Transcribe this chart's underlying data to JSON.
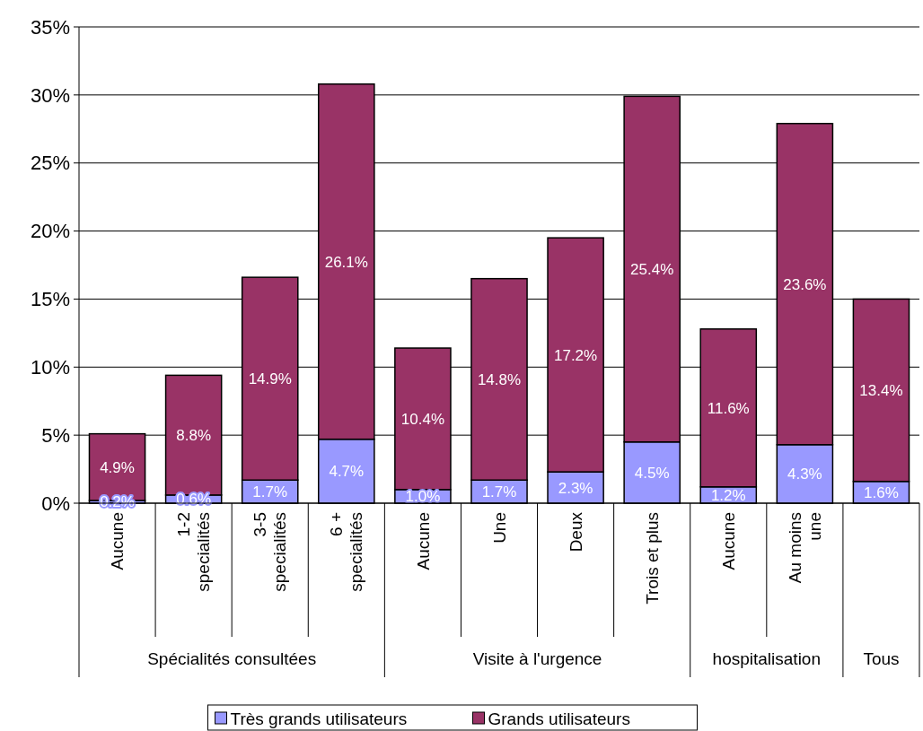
{
  "chart_data": {
    "type": "bar",
    "stacked": true,
    "categories": [
      "Aucune",
      "1-2\nspecialités",
      "3-5\nspecialités",
      "6 +\nspecialités",
      "Aucune",
      "Une",
      "Deux",
      "Trois et plus",
      "Aucune",
      "Au moins\nune",
      null
    ],
    "series": [
      {
        "name": "Très grands utilisateurs",
        "color": "#9999ff",
        "values": [
          0.2,
          0.6,
          1.7,
          4.7,
          1.0,
          1.7,
          2.3,
          4.5,
          1.2,
          4.3,
          1.6
        ],
        "value_labels": [
          "0.2%",
          "0.6%",
          "1.7%",
          "4.7%",
          "1.0%",
          "1.7%",
          "2.3%",
          "4.5%",
          "1.2%",
          "4.3%",
          "1.6%"
        ]
      },
      {
        "name": "Grands utilisateurs",
        "color": "#993366",
        "values": [
          4.9,
          8.8,
          14.9,
          26.1,
          10.4,
          14.8,
          17.2,
          25.4,
          11.6,
          23.6,
          13.4
        ],
        "value_labels": [
          "4.9%",
          "8.8%",
          "14.9%",
          "26.1%",
          "10.4%",
          "14.8%",
          "17.2%",
          "25.4%",
          "11.6%",
          "23.6%",
          "13.4%"
        ]
      }
    ],
    "ylim": [
      0,
      35
    ],
    "yticks": [
      {
        "value": 0,
        "label": "0%"
      },
      {
        "value": 5,
        "label": "5%"
      },
      {
        "value": 10,
        "label": "10%"
      },
      {
        "value": 15,
        "label": "15%"
      },
      {
        "value": 20,
        "label": "20%"
      },
      {
        "value": 25,
        "label": "25%"
      },
      {
        "value": 30,
        "label": "30%"
      },
      {
        "value": 35,
        "label": "35%"
      }
    ],
    "grid": "y",
    "legend": "bottom",
    "annotations": [
      "Spécialités consultées",
      "Visite à l'urgence",
      "hospitalisation",
      "Tous"
    ]
  }
}
